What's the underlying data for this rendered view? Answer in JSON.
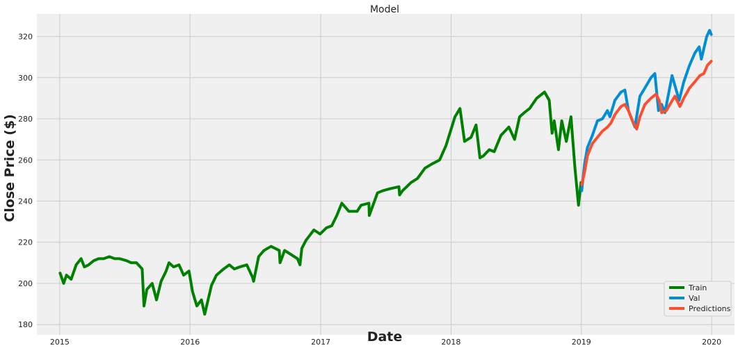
{
  "chart_data": {
    "type": "line",
    "title": "Model",
    "xlabel": "Date",
    "ylabel": "Close Price ($)",
    "xlim": [
      "2014-10-29",
      "2020-03-05"
    ],
    "ylim": [
      175,
      331
    ],
    "x_ticks": [
      "2015",
      "2016",
      "2017",
      "2018",
      "2019",
      "2020"
    ],
    "x_tick_dates": [
      "2015-01-01",
      "2016-01-01",
      "2017-01-01",
      "2018-01-01",
      "2019-01-01",
      "2020-01-01"
    ],
    "y_ticks": [
      180,
      200,
      220,
      240,
      260,
      280,
      300,
      320
    ],
    "grid": true,
    "legend_position": "lower-right",
    "series": [
      {
        "name": "Train",
        "color": "#008000",
        "x": [
          "2015-01-02",
          "2015-01-12",
          "2015-01-20",
          "2015-02-02",
          "2015-02-16",
          "2015-03-02",
          "2015-03-11",
          "2015-03-23",
          "2015-04-06",
          "2015-04-20",
          "2015-05-04",
          "2015-05-20",
          "2015-06-04",
          "2015-06-18",
          "2015-07-08",
          "2015-07-20",
          "2015-08-04",
          "2015-08-20",
          "2015-08-25",
          "2015-09-02",
          "2015-09-17",
          "2015-09-29",
          "2015-10-12",
          "2015-10-26",
          "2015-11-03",
          "2015-11-16",
          "2015-12-01",
          "2015-12-14",
          "2015-12-29",
          "2016-01-08",
          "2016-01-20",
          "2016-02-02",
          "2016-02-11",
          "2016-03-01",
          "2016-03-15",
          "2016-04-04",
          "2016-04-20",
          "2016-05-04",
          "2016-05-19",
          "2016-06-08",
          "2016-06-24",
          "2016-06-27",
          "2016-07-11",
          "2016-07-26",
          "2016-08-15",
          "2016-09-07",
          "2016-09-09",
          "2016-09-22",
          "2016-10-10",
          "2016-10-28",
          "2016-11-04",
          "2016-11-09",
          "2016-11-21",
          "2016-12-13",
          "2016-12-30",
          "2017-01-17",
          "2017-02-01",
          "2017-02-15",
          "2017-03-01",
          "2017-03-21",
          "2017-04-13",
          "2017-04-24",
          "2017-05-16",
          "2017-05-17",
          "2017-06-09",
          "2017-06-23",
          "2017-07-14",
          "2017-08-08",
          "2017-08-10",
          "2017-08-18",
          "2017-09-11",
          "2017-09-29",
          "2017-10-20",
          "2017-11-08",
          "2017-11-30",
          "2017-12-18",
          "2018-01-12",
          "2018-01-26",
          "2018-02-08",
          "2018-02-26",
          "2018-03-12",
          "2018-03-23",
          "2018-04-02",
          "2018-04-18",
          "2018-05-02",
          "2018-05-21",
          "2018-06-12",
          "2018-06-28",
          "2018-07-12",
          "2018-07-25",
          "2018-08-09",
          "2018-08-29",
          "2018-09-20",
          "2018-10-03",
          "2018-10-11",
          "2018-10-17",
          "2018-10-29",
          "2018-11-07",
          "2018-11-20",
          "2018-12-03",
          "2018-12-14",
          "2018-12-24",
          "2018-12-31"
        ],
        "values": [
          205,
          200,
          204,
          202,
          209,
          212,
          208,
          209,
          211,
          212,
          212,
          213,
          212,
          212,
          211,
          210,
          210,
          207,
          189,
          197,
          200,
          192,
          201,
          206,
          210,
          208,
          209,
          204,
          206,
          196,
          189,
          192,
          185,
          199,
          204,
          207,
          209,
          207,
          208,
          209,
          203,
          201,
          213,
          216,
          218,
          216,
          210,
          216,
          214,
          212,
          209,
          217,
          221,
          226,
          224,
          227,
          228,
          233,
          239,
          235,
          235,
          238,
          239,
          233,
          244,
          245,
          246,
          247,
          243,
          245,
          249,
          251,
          256,
          258,
          260,
          267,
          281,
          285,
          269,
          271,
          277,
          261,
          262,
          265,
          264,
          272,
          276,
          270,
          281,
          283,
          285,
          290,
          293,
          289,
          273,
          279,
          265,
          279,
          269,
          281,
          256,
          238,
          249
        ]
      },
      {
        "name": "Val",
        "color": "#008fd5",
        "x": [
          "2019-01-02",
          "2019-01-10",
          "2019-01-18",
          "2019-02-01",
          "2019-02-15",
          "2019-03-01",
          "2019-03-15",
          "2019-03-22",
          "2019-04-05",
          "2019-04-22",
          "2019-05-03",
          "2019-05-13",
          "2019-05-31",
          "2019-06-14",
          "2019-06-28",
          "2019-07-15",
          "2019-07-26",
          "2019-08-05",
          "2019-08-14",
          "2019-08-23",
          "2019-09-12",
          "2019-10-02",
          "2019-10-15",
          "2019-10-31",
          "2019-11-15",
          "2019-11-27",
          "2019-12-03",
          "2019-12-18",
          "2019-12-26",
          "2019-12-31"
        ],
        "values": [
          245,
          258,
          266,
          272,
          279,
          280,
          284,
          281,
          289,
          293,
          294,
          284,
          276,
          291,
          295,
          300,
          302,
          284,
          287,
          283,
          301,
          289,
          298,
          306,
          312,
          315,
          309,
          320,
          323,
          321
        ]
      },
      {
        "name": "Predictions",
        "color": "#fc4f30",
        "x": [
          "2019-01-02",
          "2019-01-10",
          "2019-01-18",
          "2019-02-01",
          "2019-02-15",
          "2019-03-01",
          "2019-03-15",
          "2019-03-25",
          "2019-04-05",
          "2019-04-22",
          "2019-05-03",
          "2019-05-13",
          "2019-05-24",
          "2019-06-05",
          "2019-06-14",
          "2019-06-28",
          "2019-07-15",
          "2019-07-29",
          "2019-08-07",
          "2019-08-14",
          "2019-08-27",
          "2019-09-06",
          "2019-09-20",
          "2019-10-04",
          "2019-10-15",
          "2019-10-31",
          "2019-11-15",
          "2019-11-29",
          "2019-12-10",
          "2019-12-20",
          "2019-12-31"
        ],
        "values": [
          248,
          254,
          262,
          268,
          271,
          274,
          276,
          278,
          282,
          286,
          287,
          284,
          279,
          275,
          281,
          287,
          290,
          292,
          289,
          283,
          284,
          287,
          291,
          286,
          290,
          295,
          298,
          301,
          302,
          306,
          308
        ]
      }
    ]
  }
}
